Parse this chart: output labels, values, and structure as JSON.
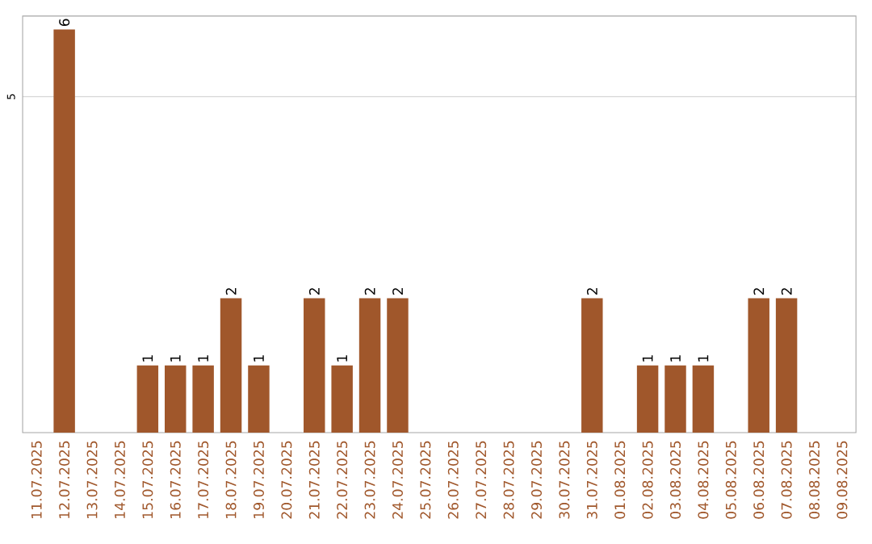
{
  "chart_data": {
    "type": "bar",
    "categories": [
      "11.07.2025",
      "12.07.2025",
      "13.07.2025",
      "14.07.2025",
      "15.07.2025",
      "16.07.2025",
      "17.07.2025",
      "18.07.2025",
      "19.07.2025",
      "20.07.2025",
      "21.07.2025",
      "22.07.2025",
      "23.07.2025",
      "24.07.2025",
      "25.07.2025",
      "26.07.2025",
      "27.07.2025",
      "28.07.2025",
      "29.07.2025",
      "30.07.2025",
      "31.07.2025",
      "01.08.2025",
      "02.08.2025",
      "03.08.2025",
      "04.08.2025",
      "05.08.2025",
      "06.08.2025",
      "07.08.2025",
      "08.08.2025",
      "09.08.2025"
    ],
    "values": [
      0,
      6,
      0,
      0,
      1,
      1,
      1,
      2,
      1,
      0,
      2,
      1,
      2,
      2,
      0,
      0,
      0,
      0,
      0,
      0,
      2,
      0,
      1,
      1,
      1,
      0,
      2,
      2,
      0,
      0
    ],
    "value_labels": [
      null,
      "6",
      null,
      null,
      "1",
      "1",
      "1",
      "2",
      "1",
      null,
      "2",
      "1",
      "2",
      "2",
      null,
      null,
      null,
      null,
      null,
      null,
      "2",
      null,
      "1",
      "1",
      "1",
      null,
      "2",
      "2",
      null,
      null
    ],
    "color": "#a0572b",
    "ylim": [
      0,
      6.2
    ],
    "yticks": [
      5
    ],
    "grid": "y"
  }
}
